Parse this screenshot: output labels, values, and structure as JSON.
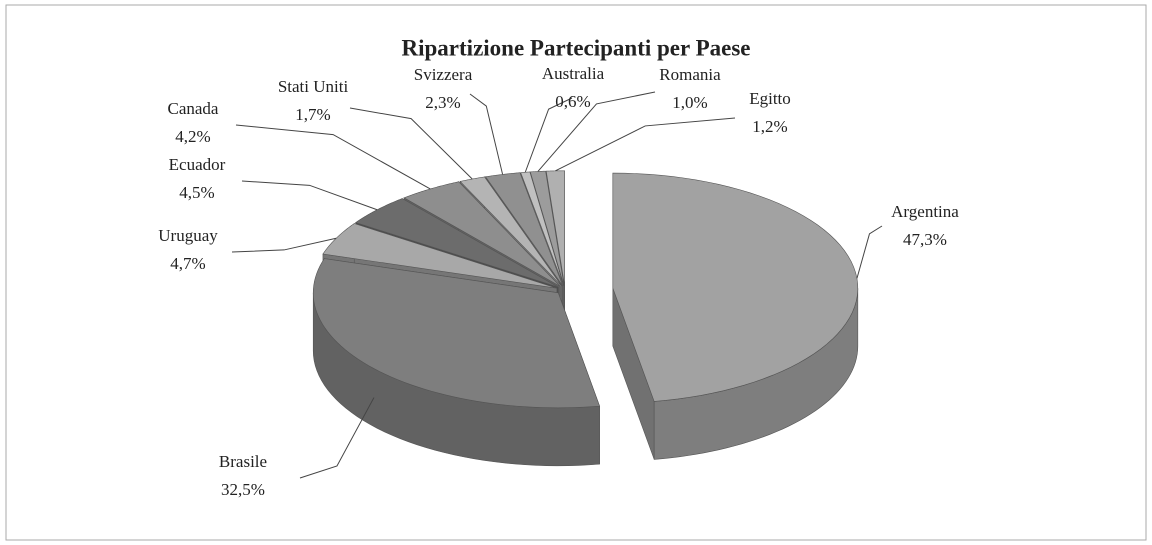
{
  "chart_data": {
    "type": "pie3d",
    "title": "Ripartizione Partecipanti per Paese",
    "categories": [
      "Argentina",
      "Brasile",
      "Uruguay",
      "Ecuador",
      "Canada",
      "Stati Uniti",
      "Svizzera",
      "Australia",
      "Romania",
      "Egitto"
    ],
    "values": [
      47.3,
      32.5,
      4.7,
      4.5,
      4.2,
      1.7,
      2.3,
      0.6,
      1.0,
      1.2
    ],
    "value_labels": [
      "47,3%",
      "32,5%",
      "4,7%",
      "4,5%",
      "4,2%",
      "1,7%",
      "2,3%",
      "0,6%",
      "1,0%",
      "1,2%"
    ],
    "colors": [
      "#a2a2a2",
      "#7e7e7e",
      "#a8a8a8",
      "#6c6c6c",
      "#8e8e8e",
      "#b4b4b4",
      "#909090",
      "#c0c0c0",
      "#9c9c9c",
      "#b0b0b0"
    ]
  }
}
